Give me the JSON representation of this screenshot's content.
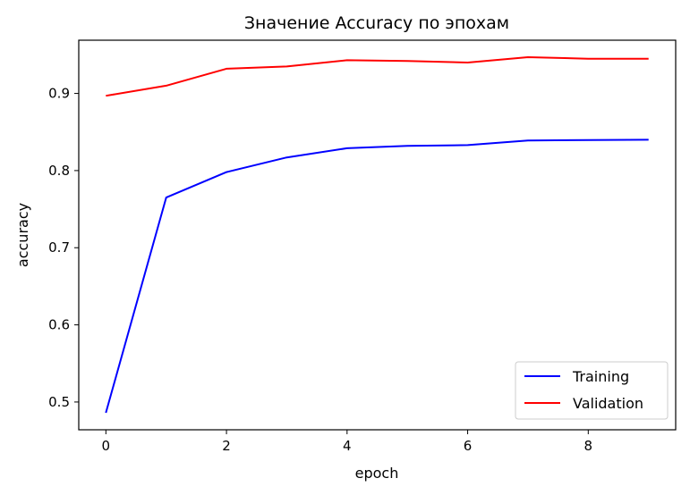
{
  "chart_data": {
    "type": "line",
    "title": "Значение Accuracy по эпохам",
    "xlabel": "epoch",
    "ylabel": "accuracy",
    "x": [
      0,
      1,
      2,
      3,
      4,
      5,
      6,
      7,
      8,
      9
    ],
    "series": [
      {
        "name": "Training",
        "color": "#0000ff",
        "values": [
          0.486,
          0.765,
          0.798,
          0.817,
          0.829,
          0.832,
          0.833,
          0.839,
          0.8395,
          0.84
        ]
      },
      {
        "name": "Validation",
        "color": "#ff0000",
        "values": [
          0.897,
          0.91,
          0.932,
          0.935,
          0.943,
          0.942,
          0.94,
          0.947,
          0.945,
          0.945
        ]
      }
    ],
    "xlim": [
      -0.45,
      9.45
    ],
    "ylim": [
      0.464,
      0.969
    ],
    "x_ticks": [
      0,
      2,
      4,
      6,
      8
    ],
    "x_tick_labels": [
      "0",
      "2",
      "4",
      "6",
      "8"
    ],
    "y_ticks": [
      0.5,
      0.6,
      0.7,
      0.8,
      0.9
    ],
    "y_tick_labels": [
      "0.5",
      "0.6",
      "0.7",
      "0.8",
      "0.9"
    ],
    "grid": false,
    "legend_position": "lower-right"
  }
}
